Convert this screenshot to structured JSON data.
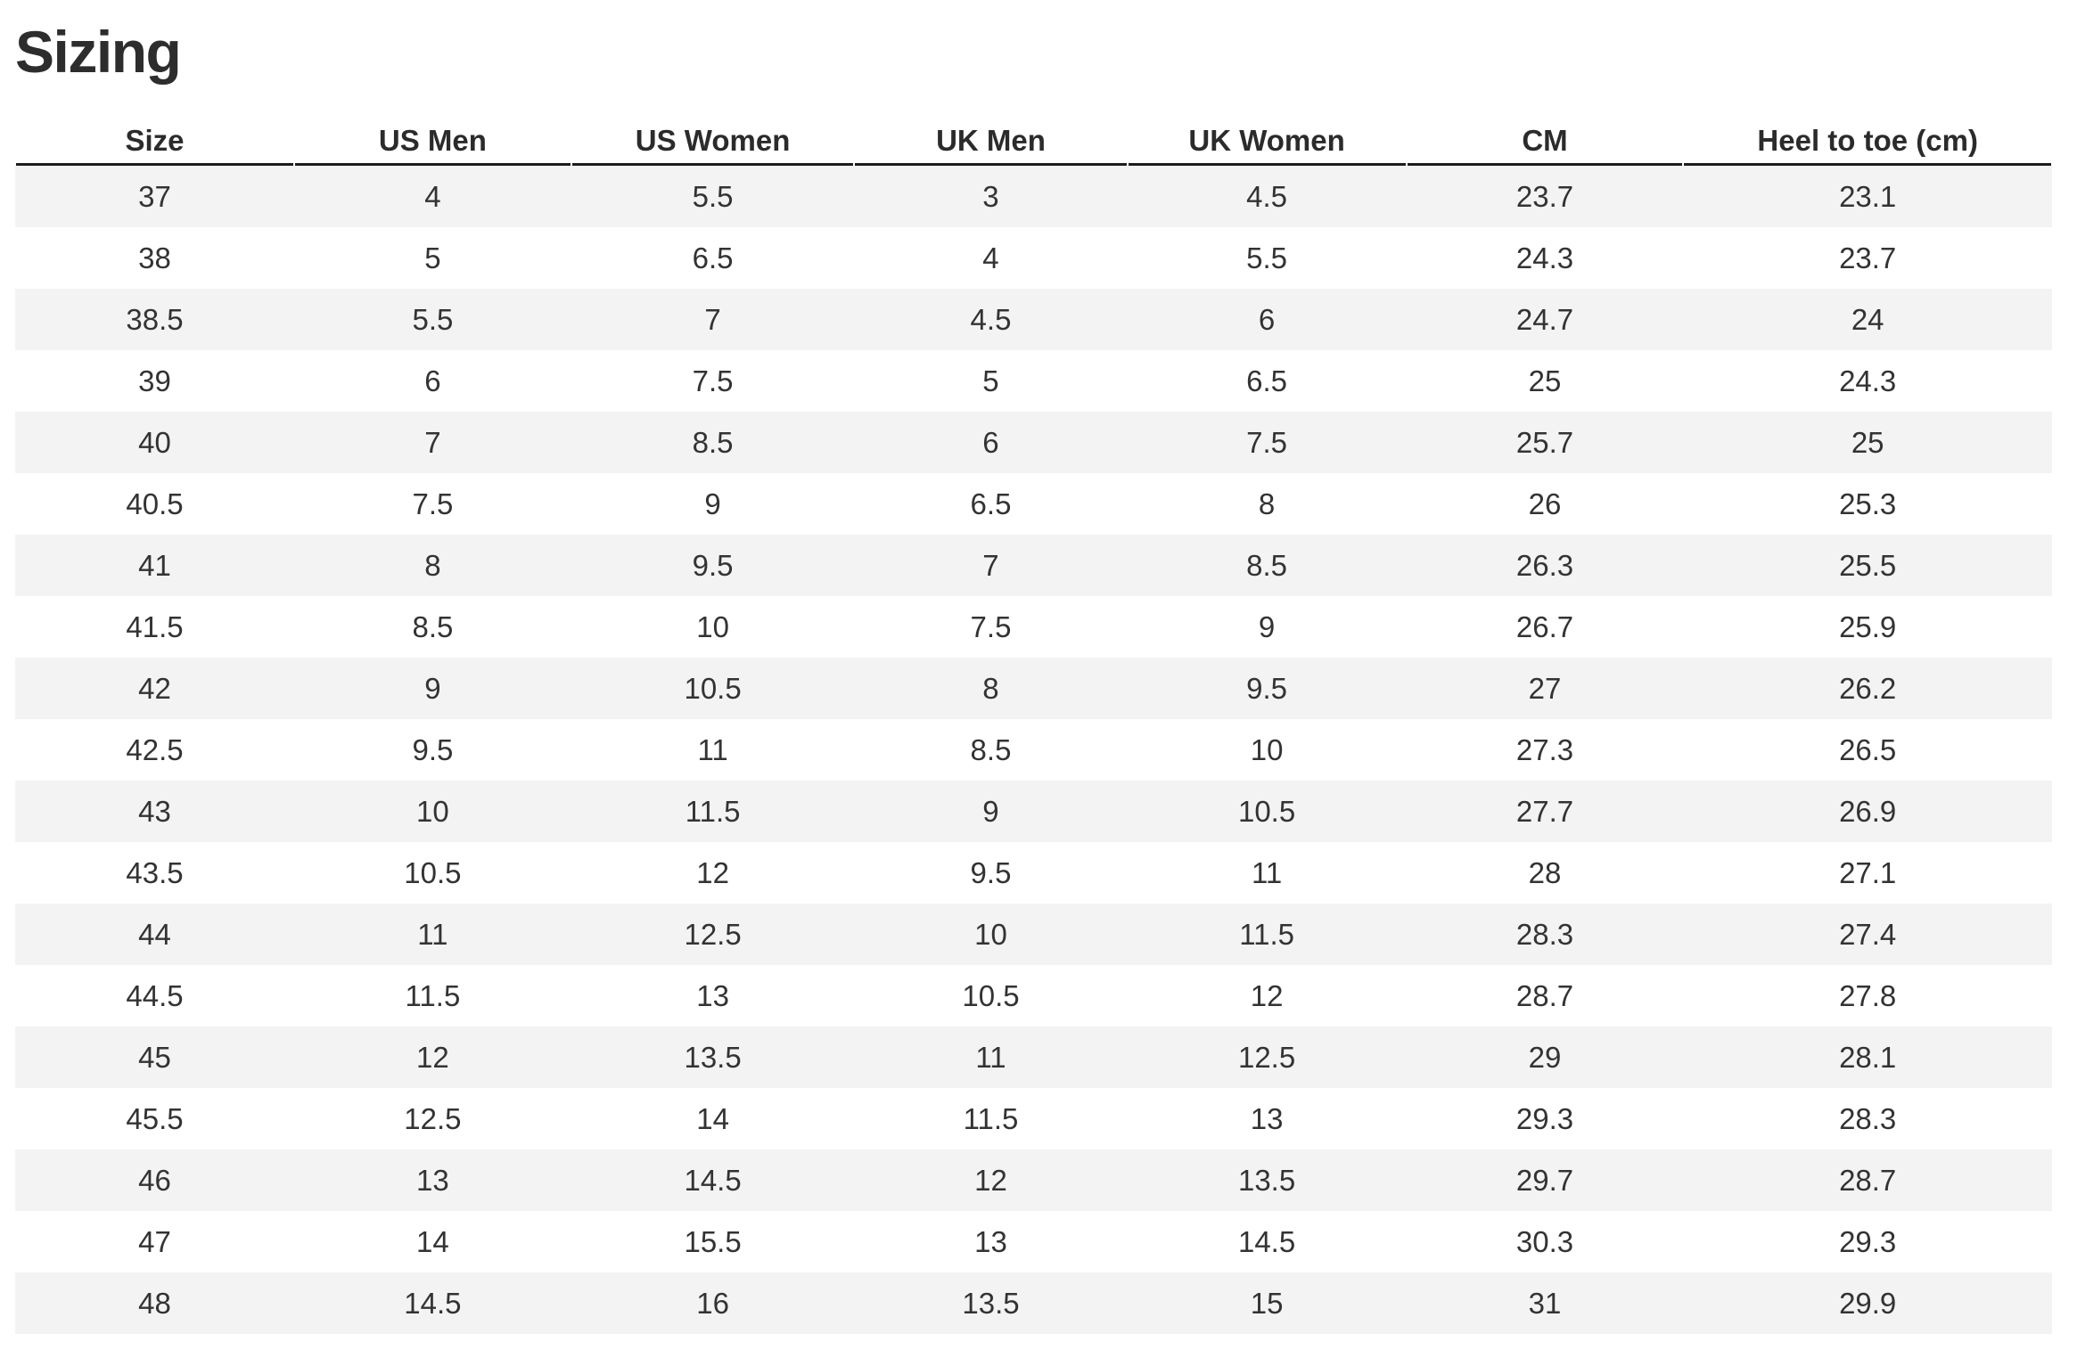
{
  "page": {
    "title": "Sizing"
  },
  "colors": {
    "background": "#FFFFFF",
    "stripe": "#F3F3F3",
    "header_border": "#1C1C1C",
    "header_text": "#2B2B2B",
    "text": "#333333",
    "title_text": "#2D2D2D"
  },
  "table": {
    "headers": [
      "Size",
      "US Men",
      "US Women",
      "UK Men",
      "UK Women",
      "CM",
      "Heel to toe (cm)"
    ],
    "rows": [
      [
        "37",
        "4",
        "5.5",
        "3",
        "4.5",
        "23.7",
        "23.1"
      ],
      [
        "38",
        "5",
        "6.5",
        "4",
        "5.5",
        "24.3",
        "23.7"
      ],
      [
        "38.5",
        "5.5",
        "7",
        "4.5",
        "6",
        "24.7",
        "24"
      ],
      [
        "39",
        "6",
        "7.5",
        "5",
        "6.5",
        "25",
        "24.3"
      ],
      [
        "40",
        "7",
        "8.5",
        "6",
        "7.5",
        "25.7",
        "25"
      ],
      [
        "40.5",
        "7.5",
        "9",
        "6.5",
        "8",
        "26",
        "25.3"
      ],
      [
        "41",
        "8",
        "9.5",
        "7",
        "8.5",
        "26.3",
        "25.5"
      ],
      [
        "41.5",
        "8.5",
        "10",
        "7.5",
        "9",
        "26.7",
        "25.9"
      ],
      [
        "42",
        "9",
        "10.5",
        "8",
        "9.5",
        "27",
        "26.2"
      ],
      [
        "42.5",
        "9.5",
        "11",
        "8.5",
        "10",
        "27.3",
        "26.5"
      ],
      [
        "43",
        "10",
        "11.5",
        "9",
        "10.5",
        "27.7",
        "26.9"
      ],
      [
        "43.5",
        "10.5",
        "12",
        "9.5",
        "11",
        "28",
        "27.1"
      ],
      [
        "44",
        "11",
        "12.5",
        "10",
        "11.5",
        "28.3",
        "27.4"
      ],
      [
        "44.5",
        "11.5",
        "13",
        "10.5",
        "12",
        "28.7",
        "27.8"
      ],
      [
        "45",
        "12",
        "13.5",
        "11",
        "12.5",
        "29",
        "28.1"
      ],
      [
        "45.5",
        "12.5",
        "14",
        "11.5",
        "13",
        "29.3",
        "28.3"
      ],
      [
        "46",
        "13",
        "14.5",
        "12",
        "13.5",
        "29.7",
        "28.7"
      ],
      [
        "47",
        "14",
        "15.5",
        "13",
        "14.5",
        "30.3",
        "29.3"
      ],
      [
        "48",
        "14.5",
        "16",
        "13.5",
        "15",
        "31",
        "29.9"
      ]
    ]
  }
}
